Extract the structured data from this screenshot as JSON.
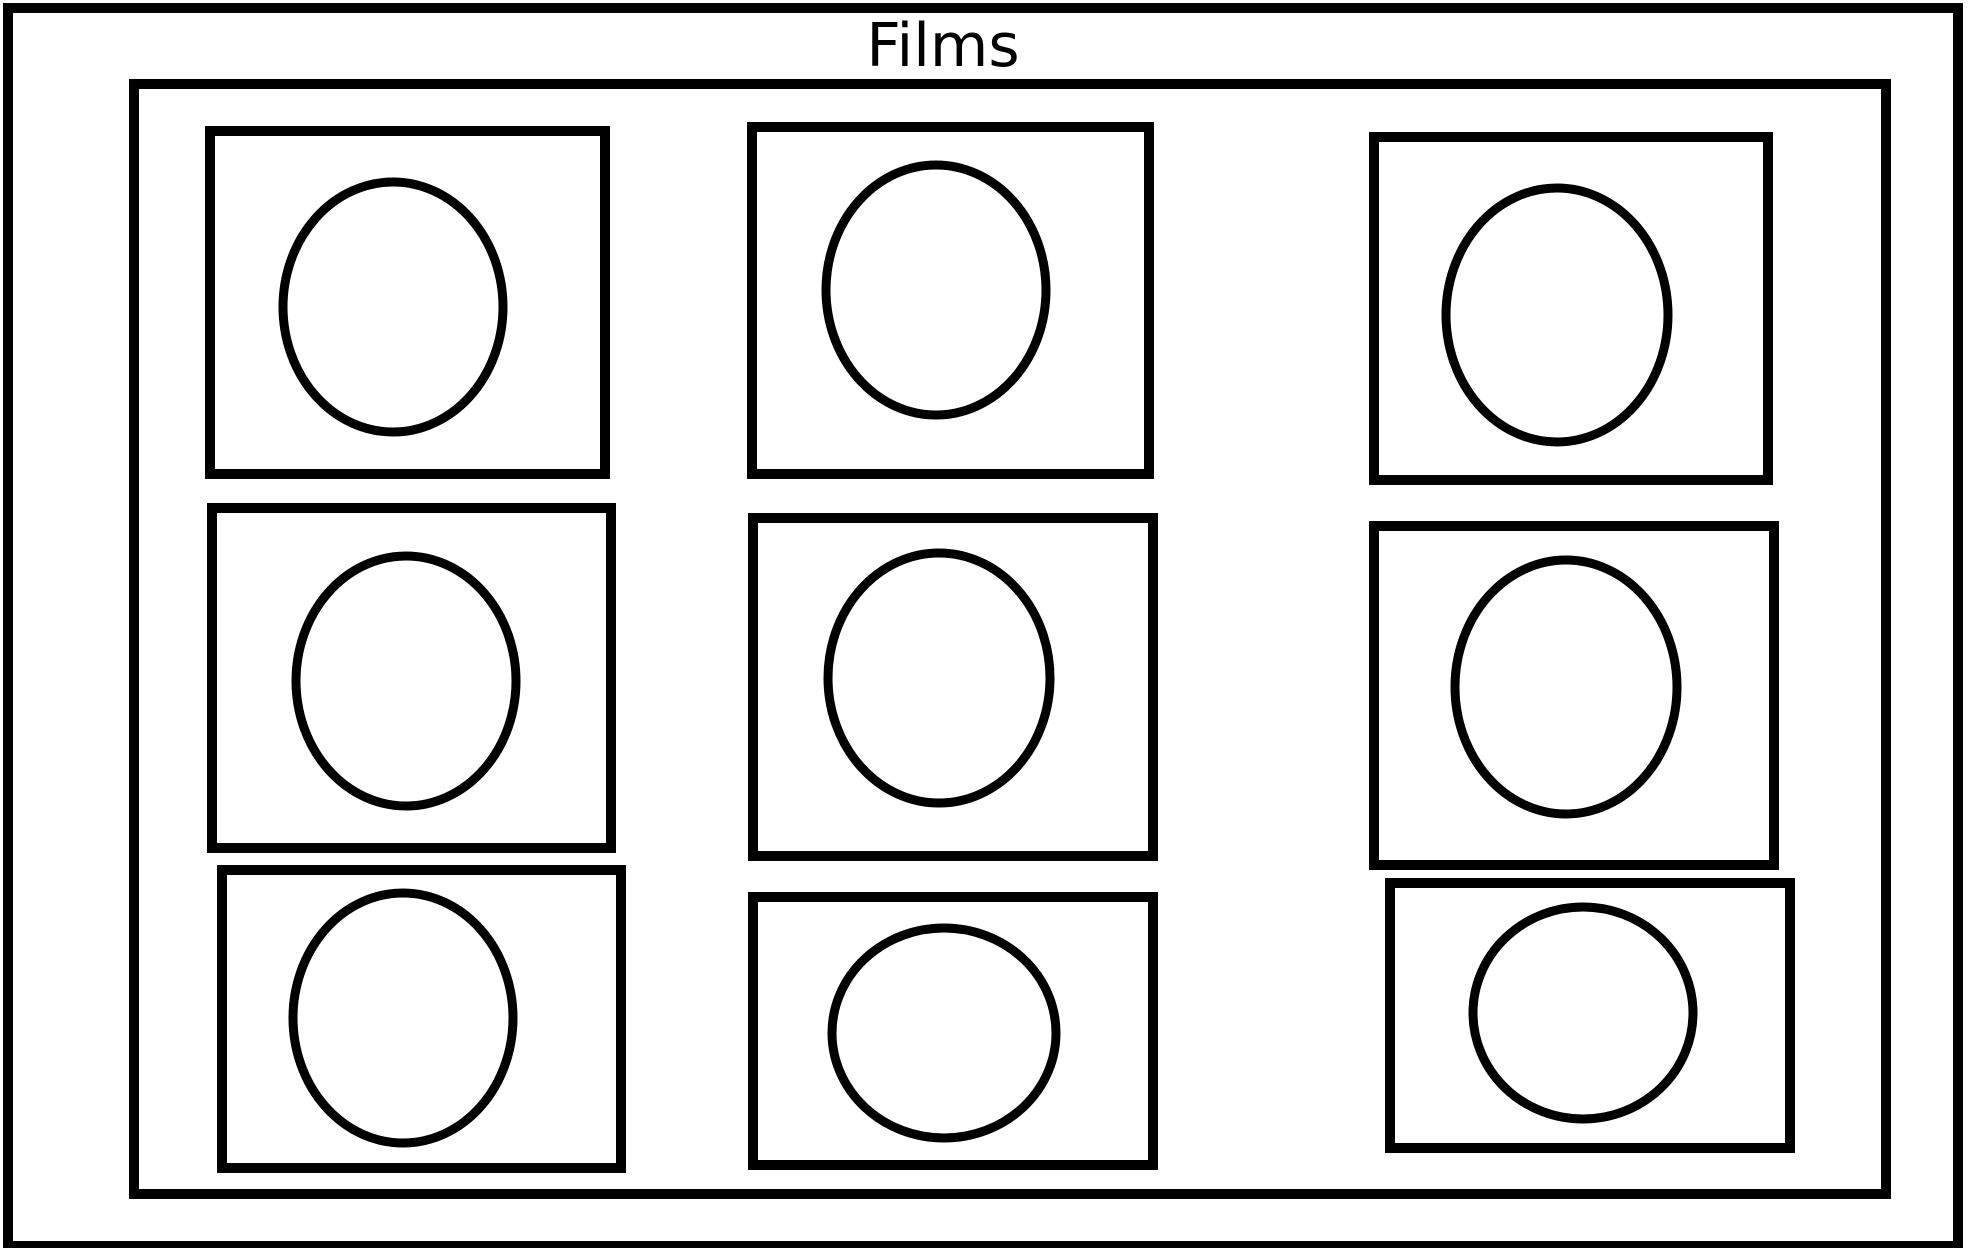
{
  "page": {
    "title": "Films"
  },
  "colors": {
    "stroke": "#000000",
    "background": "#ffffff"
  },
  "grid": {
    "rows": 3,
    "columns": 3,
    "cards": [
      {
        "row": 1,
        "column": 1,
        "icon": "circle-placeholder-icon"
      },
      {
        "row": 1,
        "column": 2,
        "icon": "circle-placeholder-icon"
      },
      {
        "row": 1,
        "column": 3,
        "icon": "circle-placeholder-icon"
      },
      {
        "row": 2,
        "column": 1,
        "icon": "circle-placeholder-icon"
      },
      {
        "row": 2,
        "column": 2,
        "icon": "circle-placeholder-icon"
      },
      {
        "row": 2,
        "column": 3,
        "icon": "circle-placeholder-icon"
      },
      {
        "row": 3,
        "column": 1,
        "icon": "circle-placeholder-icon"
      },
      {
        "row": 3,
        "column": 2,
        "icon": "circle-placeholder-icon"
      },
      {
        "row": 3,
        "column": 3,
        "icon": "circle-placeholder-icon"
      }
    ]
  }
}
